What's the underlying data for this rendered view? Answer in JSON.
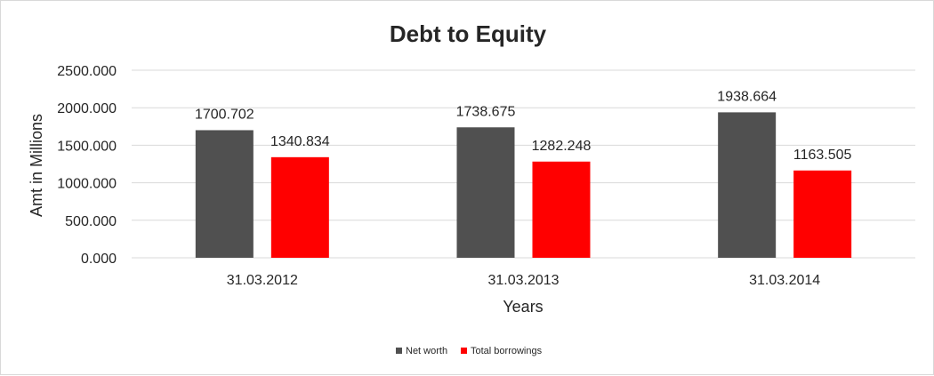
{
  "chart_data": {
    "type": "bar",
    "title": "Debt to Equity",
    "xlabel": "Years",
    "ylabel": "Amt in Millions",
    "categories": [
      "31.03.2012",
      "31.03.2013",
      "31.03.2014"
    ],
    "series": [
      {
        "name": "Net worth",
        "values": [
          1700.702,
          1738.675,
          1938.664
        ],
        "color": "#505050",
        "labels": [
          "1700.702",
          "1738.675",
          "1938.664"
        ]
      },
      {
        "name": "Total borrowings",
        "values": [
          1340.834,
          1282.248,
          1163.505
        ],
        "color": "#ff0000",
        "labels": [
          "1340.834",
          "1282.248",
          "1163.505"
        ]
      }
    ],
    "ylim": [
      0,
      2500
    ],
    "yticks": [
      "0.000",
      "500.000",
      "1000.000",
      "1500.000",
      "2000.000",
      "2500.000"
    ],
    "grid": true,
    "legend_position": "bottom"
  }
}
